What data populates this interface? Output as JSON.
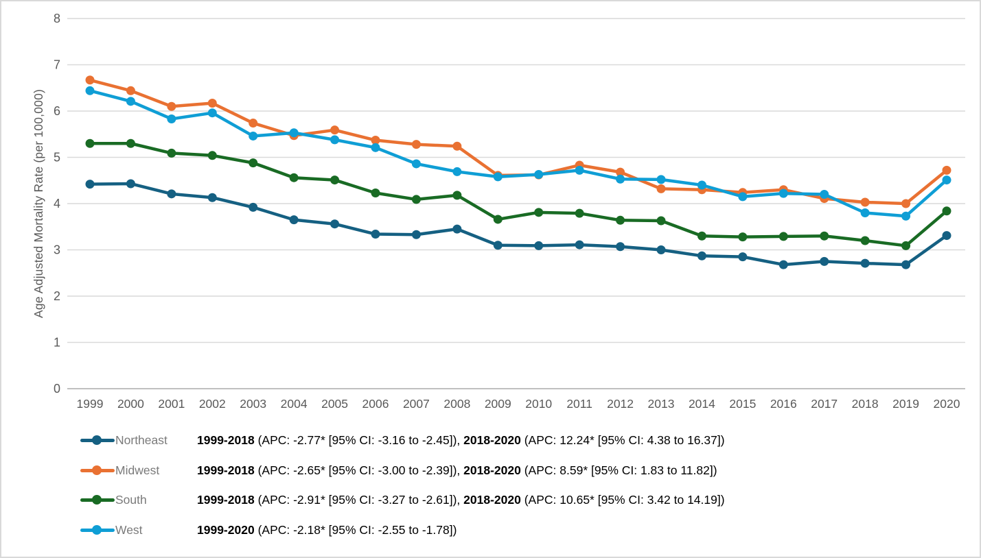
{
  "colors": {
    "background": "#FFFFFF",
    "frame_border": "#D9D9D9",
    "grid": "#D9D9D9",
    "axis_line": "#BFBFBF",
    "tick_label": "#595959",
    "axis_title": "#595959",
    "legend_label": "#7A7A7A",
    "stats_text": "#000000"
  },
  "chart_data": {
    "type": "line",
    "title": "",
    "xlabel": "",
    "ylabel": "Age Adjusted Mortality Rate (per 100,000)",
    "ylim": [
      0,
      8
    ],
    "yticks": [
      0,
      1,
      2,
      3,
      4,
      5,
      6,
      7,
      8
    ],
    "grid": true,
    "legend_position": "bottom",
    "x": [
      1999,
      2000,
      2001,
      2002,
      2003,
      2004,
      2005,
      2006,
      2007,
      2008,
      2009,
      2010,
      2011,
      2012,
      2013,
      2014,
      2015,
      2016,
      2017,
      2018,
      2019,
      2020
    ],
    "series": [
      {
        "name": "Northeast",
        "color": "#156082",
        "values": [
          4.42,
          4.43,
          4.21,
          4.13,
          3.92,
          3.65,
          3.56,
          3.34,
          3.33,
          3.45,
          3.1,
          3.09,
          3.11,
          3.07,
          3.0,
          2.87,
          2.85,
          2.68,
          2.75,
          2.71,
          2.68,
          3.31
        ]
      },
      {
        "name": "Midwest",
        "color": "#E97132",
        "values": [
          6.67,
          6.44,
          6.1,
          6.17,
          5.74,
          5.47,
          5.59,
          5.37,
          5.28,
          5.24,
          4.61,
          4.62,
          4.83,
          4.68,
          4.32,
          4.3,
          4.24,
          4.3,
          4.11,
          4.03,
          4.0,
          4.72
        ]
      },
      {
        "name": "South",
        "color": "#196B24",
        "values": [
          5.3,
          5.3,
          5.09,
          5.04,
          4.88,
          4.56,
          4.51,
          4.23,
          4.09,
          4.18,
          3.66,
          3.81,
          3.79,
          3.64,
          3.63,
          3.3,
          3.28,
          3.29,
          3.3,
          3.2,
          3.09,
          3.84
        ]
      },
      {
        "name": "West",
        "color": "#0F9ED5",
        "values": [
          6.44,
          6.21,
          5.83,
          5.96,
          5.46,
          5.53,
          5.38,
          5.21,
          4.86,
          4.69,
          4.58,
          4.63,
          4.72,
          4.53,
          4.52,
          4.4,
          4.15,
          4.22,
          4.2,
          3.8,
          3.73,
          4.51
        ]
      }
    ],
    "legend": [
      {
        "name": "Northeast",
        "segments": [
          {
            "text": "1999-2018",
            "bold": true
          },
          {
            "text": " (APC: -2.77* [95% CI: -3.16 to -2.45]), ",
            "bold": false
          },
          {
            "text": "2018-2020",
            "bold": true
          },
          {
            "text": " (APC: 12.24* [95% CI: 4.38 to 16.37])",
            "bold": false
          }
        ]
      },
      {
        "name": "Midwest",
        "segments": [
          {
            "text": "1999-2018",
            "bold": true
          },
          {
            "text": " (APC: -2.65* [95% CI: -3.00 to -2.39]), ",
            "bold": false
          },
          {
            "text": "2018-2020",
            "bold": true
          },
          {
            "text": " (APC: 8.59* [95% CI: 1.83 to 11.82])",
            "bold": false
          }
        ]
      },
      {
        "name": "South",
        "segments": [
          {
            "text": "1999-2018",
            "bold": true
          },
          {
            "text": " (APC: -2.91* [95% CI: -3.27 to -2.61]), ",
            "bold": false
          },
          {
            "text": "2018-2020",
            "bold": true
          },
          {
            "text": " (APC: 10.65* [95% CI: 3.42 to 14.19])",
            "bold": false
          }
        ]
      },
      {
        "name": "West",
        "segments": [
          {
            "text": "1999-2020",
            "bold": true
          },
          {
            "text": " (APC: -2.18* [95% CI: -2.55 to -1.78])",
            "bold": false
          }
        ]
      }
    ]
  }
}
